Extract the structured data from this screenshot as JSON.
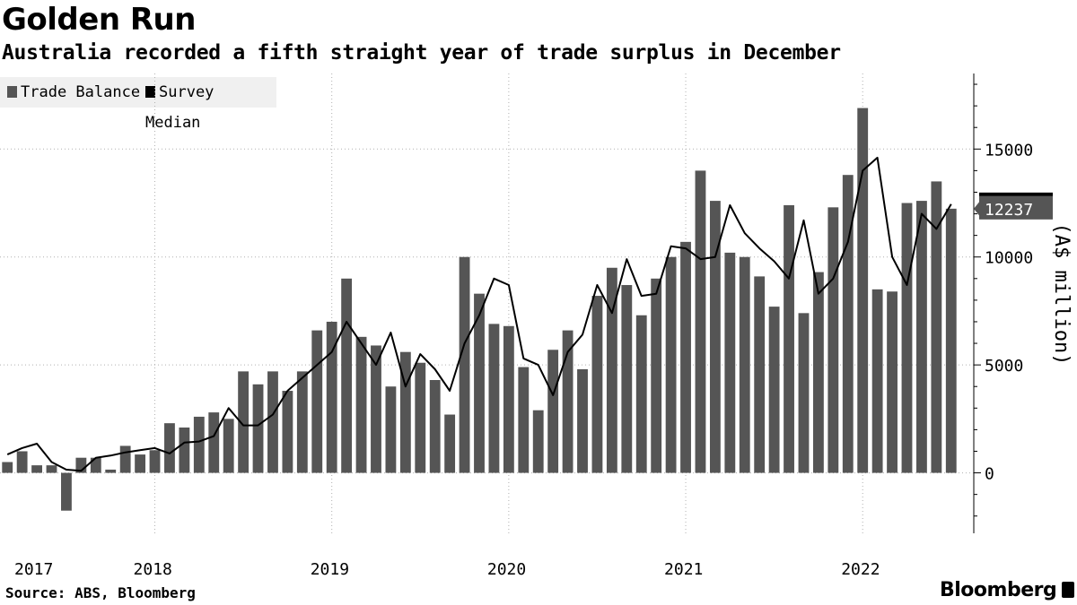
{
  "header": {
    "title": "Golden Run",
    "subtitle": "Australia recorded a fifth straight year of trade surplus in December"
  },
  "legend": {
    "items": [
      {
        "label": "Trade Balance",
        "color": "#555555"
      },
      {
        "label": "Survey Median",
        "color": "#000000"
      }
    ],
    "placement": "top-left"
  },
  "footer": {
    "source": "Source: ABS, Bloomberg",
    "brand": "Bloomberg"
  },
  "chart_data": {
    "type": "bar",
    "title": "Golden Run",
    "subtitle": "Australia recorded a fifth straight year of trade surplus in December",
    "ylabel": "(A$ million)",
    "xlabel": "",
    "ylim": [
      -2800,
      18500
    ],
    "yticks": [
      0,
      5000,
      10000,
      15000
    ],
    "ytick_labels": [
      "0",
      "5000",
      "10000",
      "15000"
    ],
    "x_year_labels": [
      "2017",
      "2018",
      "2019",
      "2020",
      "2021",
      "2022"
    ],
    "x_start": "2017-01",
    "x_end": "2022-12",
    "last_value_label": "12237",
    "grid": "vertical dotted at year boundaries",
    "axis_side": "right",
    "series": [
      {
        "name": "Trade Balance",
        "type": "bar",
        "color": "#555555",
        "values": [
          500,
          1000,
          350,
          350,
          -1750,
          700,
          700,
          150,
          1250,
          850,
          1050,
          2300,
          2100,
          2600,
          2800,
          2500,
          4700,
          4100,
          4700,
          3800,
          4700,
          6600,
          7000,
          9000,
          6300,
          5900,
          4000,
          5600,
          5100,
          4300,
          2700,
          10000,
          8300,
          6900,
          6800,
          4900,
          2900,
          5700,
          6600,
          4800,
          8200,
          9500,
          8700,
          7300,
          9000,
          10000,
          10700,
          14000,
          12600,
          10200,
          10000,
          9100,
          7700,
          12400,
          7400,
          9300,
          12300,
          13800,
          16900,
          8500,
          8400,
          12500,
          12600,
          13500,
          12237
        ]
      },
      {
        "name": "Survey Median",
        "type": "line",
        "color": "#000000",
        "values": [
          850,
          1150,
          1350,
          500,
          150,
          100,
          700,
          800,
          950,
          1050,
          1150,
          900,
          1400,
          1450,
          1700,
          3000,
          2200,
          2200,
          2700,
          3800,
          4400,
          5000,
          5600,
          7000,
          6000,
          5000,
          6500,
          4000,
          5500,
          4800,
          3800,
          6000,
          7300,
          9000,
          8700,
          5300,
          5000,
          3600,
          5600,
          6400,
          8700,
          7400,
          9900,
          8200,
          8300,
          10500,
          10400,
          9900,
          10000,
          12400,
          11100,
          10400,
          9800,
          9000,
          11700,
          8300,
          9000,
          10700,
          14000,
          14600,
          10000,
          8700,
          12000,
          11300,
          12450
        ]
      }
    ]
  }
}
